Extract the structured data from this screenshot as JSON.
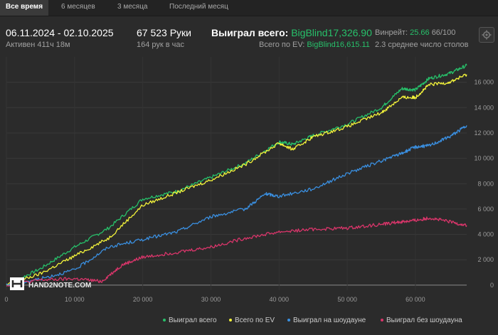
{
  "tabs": [
    {
      "label": "Все время",
      "active": true
    },
    {
      "label": "6 месяцев",
      "active": false
    },
    {
      "label": "3 месяца",
      "active": false
    },
    {
      "label": "Последний месяц",
      "active": false
    }
  ],
  "stats": {
    "date_range": "06.11.2024 - 02.10.2025",
    "active_time": "Активен 411ч 18м",
    "hands": "67 523 Руки",
    "hands_per_hour": "164 рук в час",
    "won_label": "Выиграл всего:",
    "won_value": "BigBlind17,326.90",
    "ev_label": "Всего по EV:",
    "ev_value": "BigBlind16,615.11",
    "winrate_label": "Винрейт:",
    "winrate_value": "25.66",
    "winrate_suffix": "66/100",
    "tables": "2.3 среднее число столов"
  },
  "colors": {
    "won": "#27c06a",
    "ev": "#f2f23a",
    "showdown": "#3a8fe0",
    "nonshowdown": "#d9356a",
    "background": "#2b2b2b"
  },
  "watermark": "HAND2NOTE.COM",
  "legend": [
    {
      "label": "Выиграл всего",
      "color": "#27c06a"
    },
    {
      "label": "Всего по EV",
      "color": "#f2f23a"
    },
    {
      "label": "Выиграл на шоудауне",
      "color": "#3a8fe0"
    },
    {
      "label": "Выиграл без шоудауна",
      "color": "#d9356a"
    }
  ],
  "chart_data": {
    "type": "line",
    "xlim": [
      0,
      67523
    ],
    "ylim": [
      -400,
      18000
    ],
    "x_ticks": [
      0,
      10000,
      20000,
      30000,
      40000,
      50000,
      60000
    ],
    "x_tick_labels": [
      "0",
      "10 000",
      "20 000",
      "30 000",
      "40 000",
      "50 000",
      "60 000"
    ],
    "y_ticks": [
      0,
      2000,
      4000,
      6000,
      8000,
      10000,
      12000,
      14000,
      16000
    ],
    "y_tick_labels": [
      "0",
      "2 000",
      "4 000",
      "6 000",
      "8 000",
      "10 000",
      "12 000",
      "14 000",
      "16 000"
    ],
    "grid": true,
    "legend_position": "bottom",
    "series": [
      {
        "name": "Выиграл всего",
        "color": "#27c06a",
        "x": [
          0,
          5000,
          10000,
          15000,
          20000,
          25000,
          30000,
          35000,
          40000,
          42000,
          45000,
          50000,
          55000,
          58000,
          60000,
          62000,
          65000,
          67523
        ],
        "y": [
          0,
          1300,
          3000,
          4500,
          6800,
          7400,
          8500,
          9600,
          11300,
          11100,
          11800,
          12700,
          14000,
          15500,
          15400,
          16300,
          16700,
          17327
        ]
      },
      {
        "name": "Всего по EV",
        "color": "#f2f23a",
        "x": [
          0,
          5000,
          10000,
          15000,
          20000,
          25000,
          30000,
          35000,
          40000,
          42000,
          45000,
          50000,
          55000,
          58000,
          60000,
          62000,
          65000,
          67523
        ],
        "y": [
          0,
          900,
          2300,
          3700,
          6300,
          7300,
          8300,
          9500,
          11200,
          10700,
          11700,
          12500,
          13600,
          14800,
          14800,
          15800,
          16000,
          16615
        ]
      },
      {
        "name": "Выиграл на шоудауне",
        "color": "#3a8fe0",
        "x": [
          0,
          5000,
          10000,
          15000,
          20000,
          25000,
          30000,
          35000,
          38000,
          40000,
          45000,
          50000,
          55000,
          58000,
          60000,
          62000,
          65000,
          67523
        ],
        "y": [
          0,
          500,
          1200,
          3000,
          3600,
          4200,
          5400,
          6000,
          7200,
          7000,
          7600,
          8800,
          9800,
          10400,
          10900,
          11000,
          11700,
          12600
        ]
      },
      {
        "name": "Выиграл без шоудауна",
        "color": "#d9356a",
        "x": [
          0,
          5000,
          10000,
          14000,
          17000,
          20000,
          25000,
          30000,
          35000,
          40000,
          45000,
          50000,
          55000,
          58000,
          60000,
          62000,
          65000,
          67523
        ],
        "y": [
          0,
          400,
          500,
          300,
          1600,
          2200,
          2600,
          3000,
          3700,
          4200,
          4400,
          4500,
          4800,
          5000,
          5100,
          5300,
          5000,
          4700
        ]
      }
    ]
  }
}
